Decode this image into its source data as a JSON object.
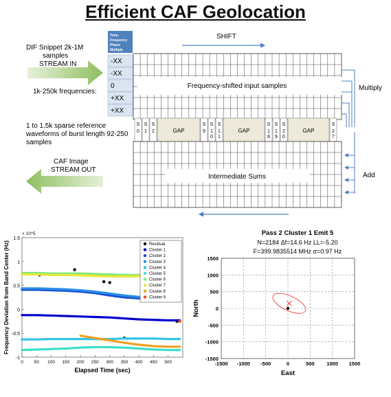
{
  "title": "Efficient CAF Geolocation",
  "diagram": {
    "dif_snippet": [
      "DIF Snippet 2k-1M",
      "samples",
      "STREAM IN"
    ],
    "frequencies_label": "1k-250k frequencies:",
    "sparse_ref": [
      "1 to 1.5k sparse reference",
      "waveforms of burst length 92-250",
      "samples"
    ],
    "caf_image": [
      "CAF Image",
      "STREAM OUT"
    ],
    "tfpm_header": [
      "Time-",
      "Frequency",
      "Phase",
      "Multiply"
    ],
    "freq_offsets": [
      "-XX",
      "-XX",
      "0",
      "+XX",
      "+XX"
    ],
    "shift_label": "SHIFT",
    "multiply_label": "Multiply",
    "add_label": "Add",
    "freq_shifted_label": "Frequency-shifted input samples",
    "intermediate_label": "Intermediate Sums",
    "gap_label": "GAP",
    "sparse_cells": [
      {
        "top": "S",
        "bottom": "0"
      },
      {
        "top": "S",
        "bottom": "1"
      },
      {
        "top": "S",
        "bottom": "2"
      },
      {
        "top": "S",
        "bottom": "9"
      },
      {
        "top": "S",
        "bottom": "1\n0"
      },
      {
        "top": "S",
        "bottom": "1\n1"
      },
      {
        "top": "S",
        "bottom": "1\n8"
      },
      {
        "top": "S",
        "bottom": "1\n9"
      },
      {
        "top": "S",
        "bottom": "2\n0"
      },
      {
        "top": "S",
        "bottom": "2\n7"
      }
    ]
  },
  "chart_data": [
    {
      "type": "scatter",
      "title": "",
      "xlabel": "Elapsed Time (sec)",
      "ylabel": "Frequency Deviation from Band Center (Hz)",
      "ylim": [
        -1.0,
        1.5
      ],
      "xlim": [
        0,
        550
      ],
      "y_multiplier_label": "× 10^5",
      "x_ticks": [
        "0",
        "50",
        "100",
        "150",
        "200",
        "250",
        "300",
        "350",
        "400",
        "450",
        "500"
      ],
      "y_ticks": [
        "1.5",
        "1",
        "0.5",
        "0",
        "-0.5",
        "-1"
      ],
      "legend_position": "top-right",
      "series": [
        {
          "name": "Residual",
          "color": "#000000",
          "x": [
            40,
            60,
            180,
            280,
            300,
            350,
            520,
            530
          ],
          "y": [
            0.74,
            0.72,
            0.83,
            0.58,
            0.56,
            -0.6,
            0.72,
            -0.25
          ]
        },
        {
          "name": "Cluster 1",
          "color": "#0000cc",
          "x": [
            0,
            50,
            100,
            150,
            200,
            250,
            300,
            350,
            400,
            450,
            500,
            540
          ],
          "y": [
            -0.12,
            -0.12,
            -0.13,
            -0.14,
            -0.15,
            -0.16,
            -0.17,
            -0.19,
            -0.21,
            -0.22,
            -0.23,
            -0.23
          ]
        },
        {
          "name": "Cluster 2",
          "color": "#1a4fd6",
          "x": [
            0,
            50,
            100,
            150,
            200,
            250,
            300,
            350,
            400,
            450,
            500,
            540
          ],
          "y": [
            0.41,
            0.41,
            0.4,
            0.39,
            0.37,
            0.34,
            0.29,
            0.25,
            0.23,
            0.22,
            0.21,
            0.21
          ]
        },
        {
          "name": "Cluster 3",
          "color": "#2b8ee6",
          "x": [
            0,
            50,
            100,
            150,
            200,
            250,
            300,
            350,
            400,
            450,
            500,
            540
          ],
          "y": [
            0.44,
            0.44,
            0.43,
            0.42,
            0.4,
            0.37,
            0.33,
            0.29,
            0.26,
            0.24,
            0.23,
            0.23
          ]
        },
        {
          "name": "Cluster 4",
          "color": "#33c4e8",
          "x": [
            0,
            50,
            100,
            150,
            200,
            250,
            300,
            350,
            400,
            450,
            500,
            540
          ],
          "y": [
            -0.63,
            -0.63,
            -0.62,
            -0.62,
            -0.62,
            -0.62,
            -0.62,
            -0.61,
            -0.61,
            -0.61,
            -0.62,
            -0.62
          ]
        },
        {
          "name": "Cluster 5",
          "color": "#3ae0c8",
          "x": [
            0,
            50,
            100,
            150,
            200,
            250,
            300,
            350,
            400,
            450,
            500,
            540
          ],
          "y": [
            -0.85,
            -0.84,
            -0.83,
            -0.82,
            -0.8,
            -0.79,
            -0.79,
            -0.8,
            -0.82,
            -0.84,
            -0.85,
            -0.85
          ]
        },
        {
          "name": "Cluster 6",
          "color": "#7ee878",
          "x": [
            0,
            50,
            100,
            150,
            200,
            250,
            300,
            350,
            400,
            450,
            500,
            540
          ],
          "y": [
            0.76,
            0.76,
            0.75,
            0.75,
            0.75,
            0.74,
            0.73,
            0.72,
            0.72,
            0.72,
            0.72,
            0.72
          ]
        },
        {
          "name": "Cluster 7",
          "color": "#e8e83a",
          "x": [
            0,
            50,
            100,
            150,
            200,
            250,
            300,
            350,
            400,
            450,
            500,
            540
          ],
          "y": [
            0.73,
            0.73,
            0.72,
            0.72,
            0.71,
            0.7,
            0.69,
            0.69,
            0.69,
            0.7,
            0.7,
            0.7
          ]
        },
        {
          "name": "Cluster 8",
          "color": "#f0a020",
          "x": [
            200,
            250,
            300,
            350,
            400,
            450,
            500,
            540
          ],
          "y": [
            -0.55,
            -0.6,
            -0.65,
            -0.7,
            -0.74,
            -0.77,
            -0.78,
            -0.78
          ]
        },
        {
          "name": "Cluster 9",
          "color": "#e85020",
          "x": [
            520,
            530,
            540
          ],
          "y": [
            1.0,
            0.98,
            -0.25
          ]
        }
      ]
    },
    {
      "type": "scatter",
      "title": "Pass 2 Cluster 1 Emit 5",
      "subtitle_lines": [
        "N=2184 Δf=14.6 Hz LL=-5.20",
        "F=399.9835514 MHz σ=0.97 Hz"
      ],
      "xlabel": "East",
      "ylabel": "North",
      "xlim": [
        -1500,
        1500
      ],
      "ylim": [
        -1500,
        1500
      ],
      "x_ticks": [
        "-1500",
        "-1000",
        "-500",
        "0",
        "500",
        "1000",
        "1500"
      ],
      "y_ticks": [
        "1500",
        "1000",
        "500",
        "0",
        "-500",
        "-1000",
        "-1500"
      ],
      "grid": true,
      "points": [
        {
          "label": "truth",
          "x": 0,
          "y": 0,
          "color": "#000000"
        },
        {
          "label": "estimate",
          "x": 30,
          "y": 150,
          "color": "#e03030"
        }
      ],
      "ellipse": {
        "cx": 30,
        "cy": 150,
        "rx": 400,
        "ry": 220,
        "angle": -25,
        "color": "#e03030"
      }
    }
  ]
}
